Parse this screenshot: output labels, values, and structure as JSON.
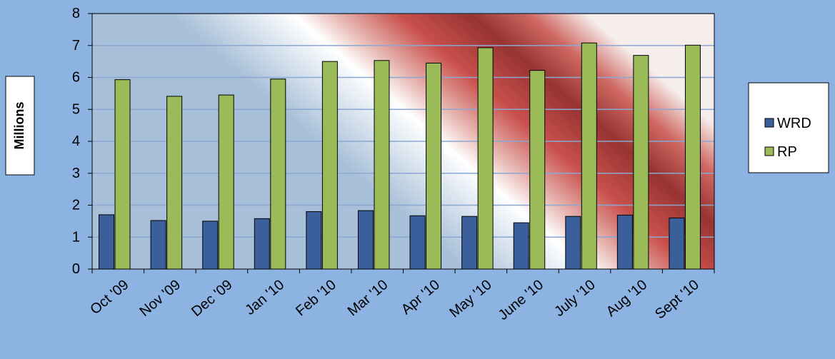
{
  "chart_data": {
    "type": "bar",
    "title": "",
    "xlabel": "",
    "ylabel": "Millions",
    "ylim": [
      0,
      8
    ],
    "yticks": [
      "0",
      "1",
      "2",
      "3",
      "4",
      "5",
      "6",
      "7",
      "8"
    ],
    "categories": [
      "Oct '09",
      "Nov '09",
      "Dec '09",
      "Jan '10",
      "Feb '10",
      "Mar '10",
      "Apr '10",
      "May '10",
      "June '10",
      "July '10",
      "Aug '10",
      "Sept '10"
    ],
    "series": [
      {
        "name": "WRD",
        "color": "#3b5f9a",
        "values": [
          1.7,
          1.52,
          1.5,
          1.58,
          1.8,
          1.83,
          1.67,
          1.65,
          1.45,
          1.65,
          1.69,
          1.6
        ]
      },
      {
        "name": "RP",
        "color": "#9bbb59",
        "values": [
          5.93,
          5.41,
          5.45,
          5.95,
          6.5,
          6.53,
          6.45,
          6.93,
          6.22,
          7.08,
          6.69,
          7.01
        ]
      }
    ],
    "grid": true,
    "legend_position": "right"
  }
}
